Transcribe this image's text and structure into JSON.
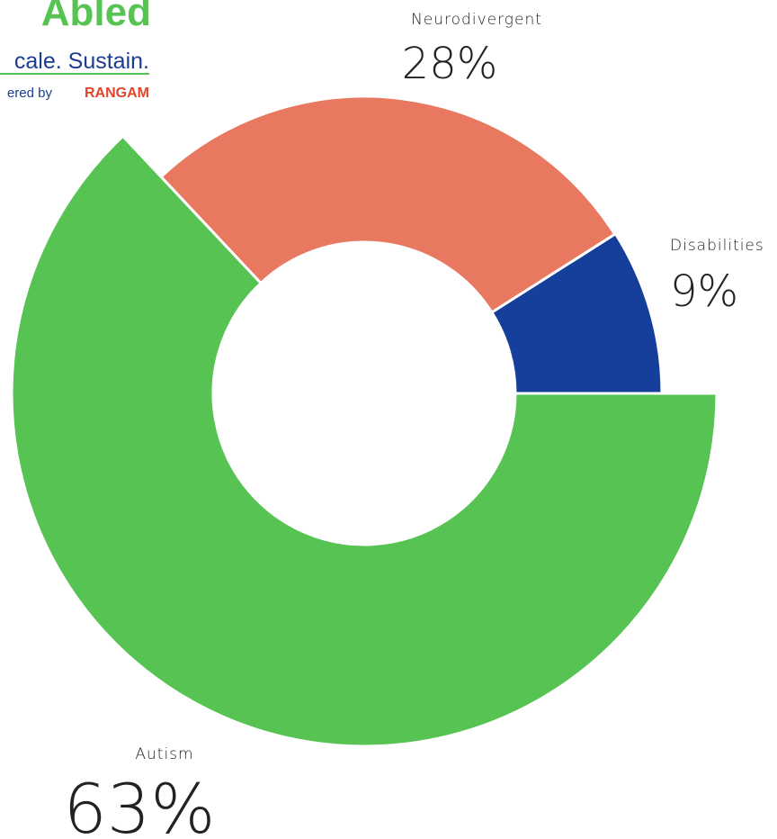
{
  "logo": {
    "brand": "Abled",
    "tagline": "cale. Sustain.",
    "powered": "ered by",
    "company": "RANGAM"
  },
  "chart_data": {
    "type": "donut",
    "categories": [
      "Disabilities",
      "Neurodivergent",
      "Autism"
    ],
    "values": [
      9,
      28,
      63
    ],
    "value_labels": [
      "9%",
      "28%",
      "63%"
    ],
    "colors": [
      "#163f9c",
      "#e87860",
      "#56c353"
    ]
  }
}
